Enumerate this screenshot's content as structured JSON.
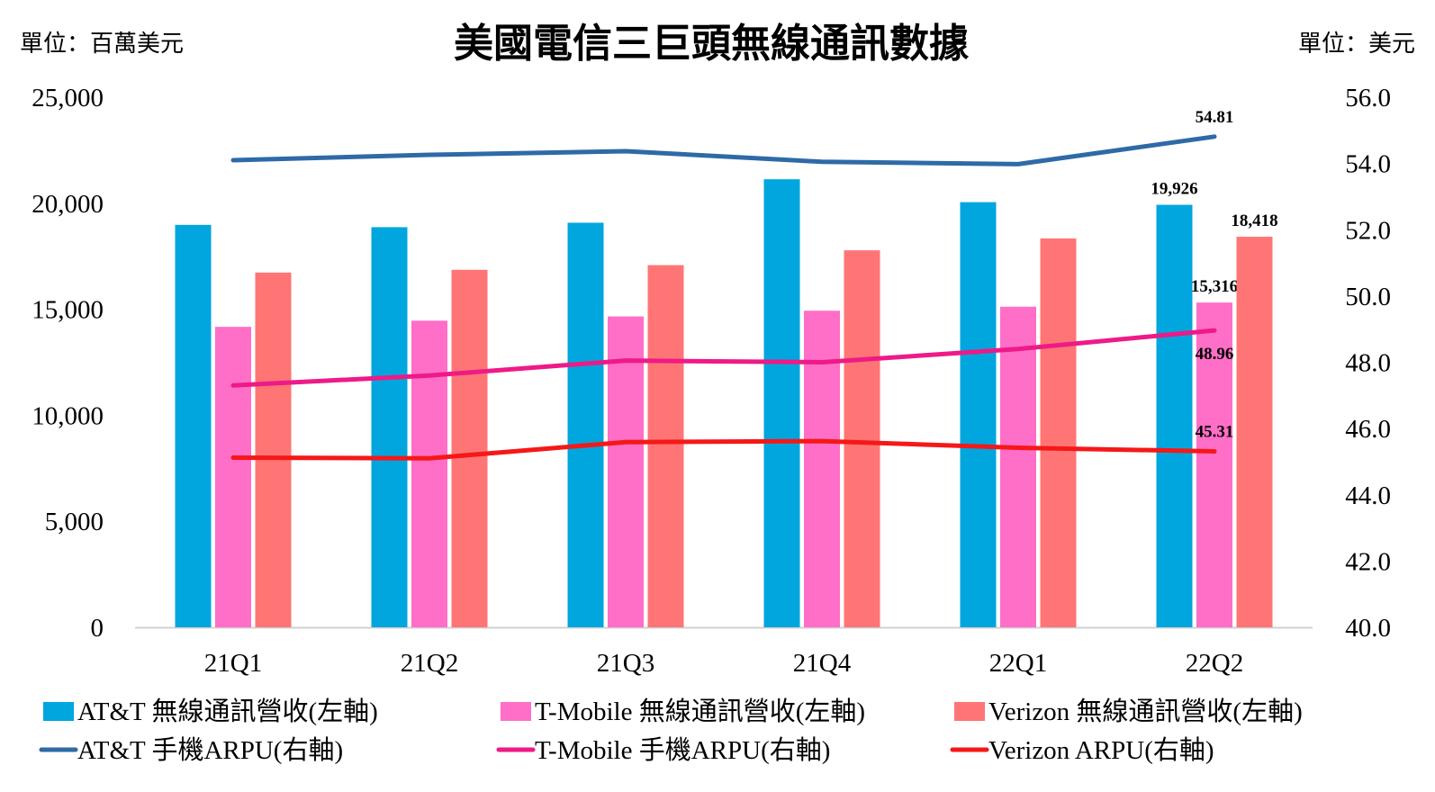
{
  "chart_data": {
    "type": "bar",
    "title": "美國電信三巨頭無線通訊數據",
    "left_unit": "單位：百萬美元",
    "right_unit": "單位：美元",
    "categories": [
      "21Q1",
      "21Q2",
      "21Q3",
      "21Q4",
      "22Q1",
      "22Q2"
    ],
    "left_axis": {
      "ylim": [
        0,
        25000
      ],
      "ticks": [
        "0",
        "5,000",
        "10,000",
        "15,000",
        "20,000",
        "25,000"
      ],
      "tick_values": [
        0,
        5000,
        10000,
        15000,
        20000,
        25000
      ]
    },
    "right_axis": {
      "ylim": [
        40,
        56
      ],
      "ticks": [
        "40.0",
        "42.0",
        "44.0",
        "46.0",
        "48.0",
        "50.0",
        "52.0",
        "54.0",
        "56.0"
      ],
      "tick_values": [
        40,
        42,
        44,
        46,
        48,
        50,
        52,
        54,
        56
      ]
    },
    "gridlines": false,
    "legend_position": "bottom",
    "bar_series": [
      {
        "name": "AT&T 無線通訊營收(左軸)",
        "color": "#00a6dd",
        "values": [
          18980,
          18870,
          19080,
          21130,
          20050,
          19926
        ],
        "labels": [
          "",
          "",
          "",
          "",
          "",
          "19,926"
        ]
      },
      {
        "name": "T-Mobile 無線通訊營收(左軸)",
        "color": "#ff6ec7",
        "values": [
          14170,
          14460,
          14660,
          14930,
          15120,
          15316
        ],
        "labels": [
          "",
          "",
          "",
          "",
          "",
          "15,316"
        ]
      },
      {
        "name": "Verizon 無線通訊營收(左軸)",
        "color": "#ff7575",
        "values": [
          16730,
          16860,
          17080,
          17780,
          18340,
          18418
        ],
        "labels": [
          "",
          "",
          "",
          "",
          "",
          "18,418"
        ]
      }
    ],
    "line_series": [
      {
        "name": "AT&T 手機ARPU(右軸)",
        "color": "#2e6aa6",
        "values": [
          54.1,
          54.26,
          54.37,
          54.05,
          53.98,
          54.81
        ],
        "labels": [
          "",
          "",
          "",
          "",
          "",
          "54.81"
        ]
      },
      {
        "name": "T-Mobile 手機ARPU(右軸)",
        "color": "#ee1a87",
        "values": [
          47.3,
          47.6,
          48.05,
          48.0,
          48.4,
          48.96
        ],
        "labels": [
          "",
          "",
          "",
          "",
          "",
          "48.96"
        ]
      },
      {
        "name": "Verizon ARPU(右軸)",
        "color": "#f51818",
        "values": [
          45.12,
          45.1,
          45.59,
          45.62,
          45.42,
          45.31
        ],
        "labels": [
          "",
          "",
          "",
          "",
          "",
          "45.31"
        ]
      }
    ]
  }
}
